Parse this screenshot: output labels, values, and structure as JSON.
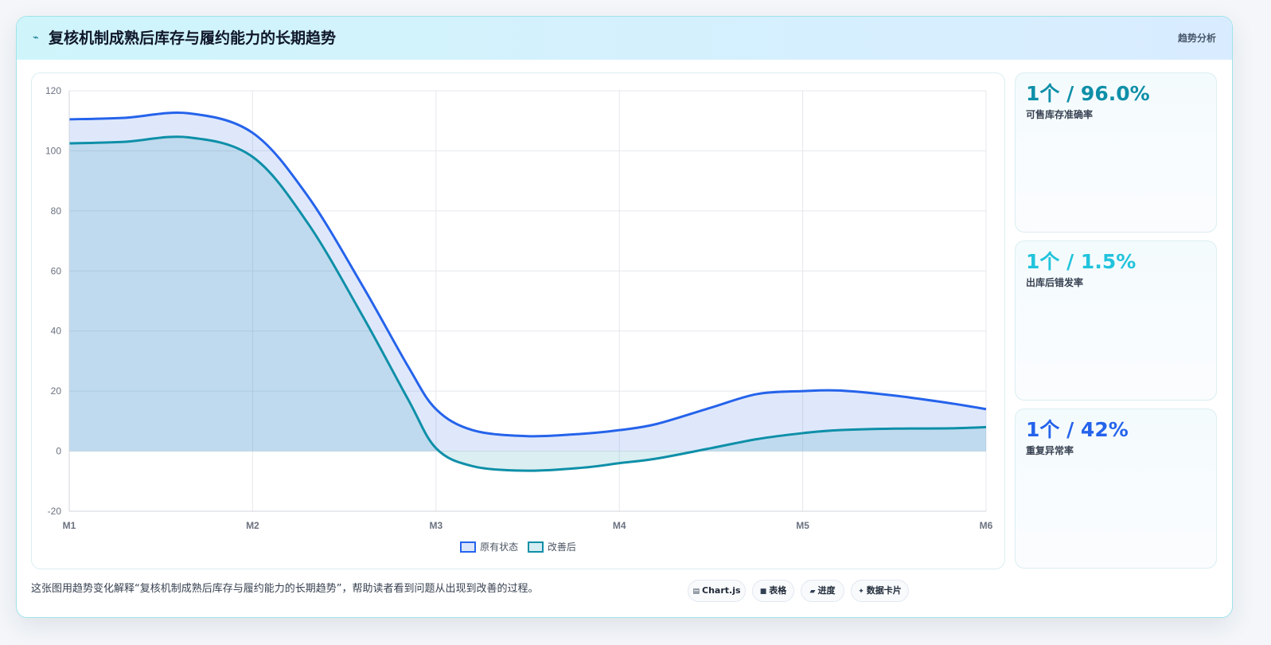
{
  "header": {
    "icon": "trend-icon",
    "title": "复核机制成熟后库存与履约能力的长期趋势",
    "badge": "趋势分析"
  },
  "chart_data": {
    "type": "area",
    "categories": [
      "M1",
      "M2",
      "M3",
      "M4",
      "M5",
      "M6"
    ],
    "x": [
      0,
      1,
      2,
      3,
      4,
      5
    ],
    "series": [
      {
        "name": "原有状态",
        "color": "#2563eb",
        "x": [
          0,
          0.3,
          0.65,
          1.0,
          1.3,
          1.6,
          1.85,
          2.0,
          2.2,
          2.5,
          2.8,
          3.0,
          3.2,
          3.5,
          3.75,
          4.0,
          4.2,
          4.5,
          4.8,
          5.0
        ],
        "values": [
          110.5,
          111.0,
          112.5,
          106.0,
          85.0,
          55.0,
          28.0,
          14.0,
          7.0,
          5.0,
          5.8,
          7.0,
          9.0,
          14.5,
          19.0,
          20.0,
          20.2,
          18.5,
          16.0,
          14.0
        ]
      },
      {
        "name": "改善后",
        "color": "#0e8fa8",
        "x": [
          0,
          0.3,
          0.65,
          1.0,
          1.3,
          1.6,
          1.85,
          2.0,
          2.2,
          2.5,
          2.8,
          3.0,
          3.2,
          3.5,
          3.75,
          4.0,
          4.2,
          4.5,
          4.8,
          5.0
        ],
        "values": [
          102.5,
          103.0,
          104.5,
          98.0,
          76.0,
          45.0,
          17.0,
          1.0,
          -5.0,
          -6.5,
          -5.5,
          -4.0,
          -2.5,
          1.0,
          4.0,
          6.0,
          7.0,
          7.5,
          7.6,
          8.0
        ]
      }
    ],
    "ylim": [
      -20,
      120
    ],
    "yticks": [
      120,
      100,
      80,
      60,
      40,
      20,
      0,
      -20
    ],
    "grid": true,
    "legend": "bottom-center"
  },
  "metrics": [
    {
      "value": "1个 / 96.0%",
      "label": "可售库存准确率",
      "color": "#0e8fa8"
    },
    {
      "value": "1个 / 1.5%",
      "label": "出库后错发率",
      "color": "#22c3dc"
    },
    {
      "value": "1个 / 42%",
      "label": "重复异常率",
      "color": "#2563eb"
    }
  ],
  "footer": {
    "text": "这张图用趋势变化解释“复核机制成熟后库存与履约能力的长期趋势”，帮助读者看到问题从出现到改善的过程。",
    "chips": [
      {
        "icon": "chart-icon",
        "glyph": "▤",
        "label": "Chart.js"
      },
      {
        "icon": "table-icon",
        "glyph": "■",
        "label": "表格"
      },
      {
        "icon": "progress-icon",
        "glyph": "▰",
        "label": "进度"
      },
      {
        "icon": "sparkle-icon",
        "glyph": "✦",
        "label": "数据卡片"
      }
    ]
  }
}
